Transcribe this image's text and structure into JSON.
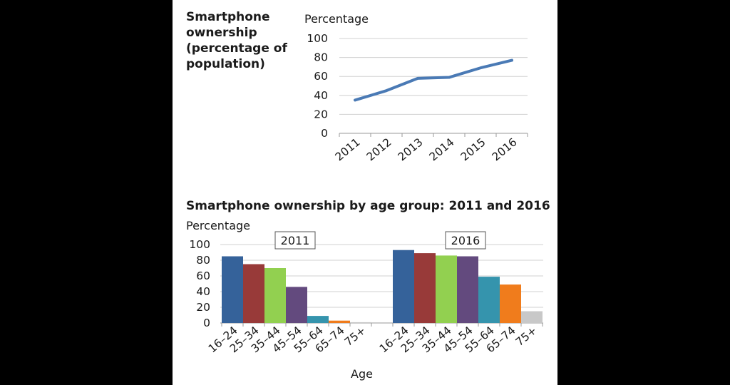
{
  "page": {
    "background": "#000000",
    "panel_background": "#ffffff"
  },
  "chart_data": [
    {
      "type": "line",
      "title": "Smartphone ownership (percentage of population)",
      "title_lines": [
        "Smartphone",
        "ownership",
        "(percentage of",
        "population)"
      ],
      "ylabel": "Percentage",
      "xlabel": "",
      "x": [
        "2011",
        "2012",
        "2013",
        "2014",
        "2015",
        "2016"
      ],
      "values": [
        35,
        45,
        58,
        59,
        69,
        77
      ],
      "ylim": [
        0,
        100
      ],
      "yticks": [
        "0",
        "20",
        "40",
        "60",
        "80",
        "100"
      ],
      "grid": true,
      "color": "#4a7ab5"
    },
    {
      "type": "bar",
      "title": "Smartphone ownership by age group: 2011 and 2016",
      "ylabel": "Percentage",
      "xlabel": "Age",
      "ylim": [
        0,
        100
      ],
      "yticks": [
        "0",
        "20",
        "40",
        "60",
        "80",
        "100"
      ],
      "grid": true,
      "categories": [
        "16–24",
        "25–34",
        "35–44",
        "45–54",
        "55–64",
        "65–74",
        "75+"
      ],
      "colors": [
        "#35629a",
        "#983a39",
        "#92d050",
        "#634a7e",
        "#3594ad",
        "#f07c1c",
        "#c8c8c8"
      ],
      "groups": [
        {
          "label": "2011",
          "values": [
            85,
            75,
            70,
            46,
            9,
            3,
            1
          ]
        },
        {
          "label": "2016",
          "values": [
            93,
            89,
            86,
            85,
            59,
            49,
            15
          ]
        }
      ]
    }
  ]
}
